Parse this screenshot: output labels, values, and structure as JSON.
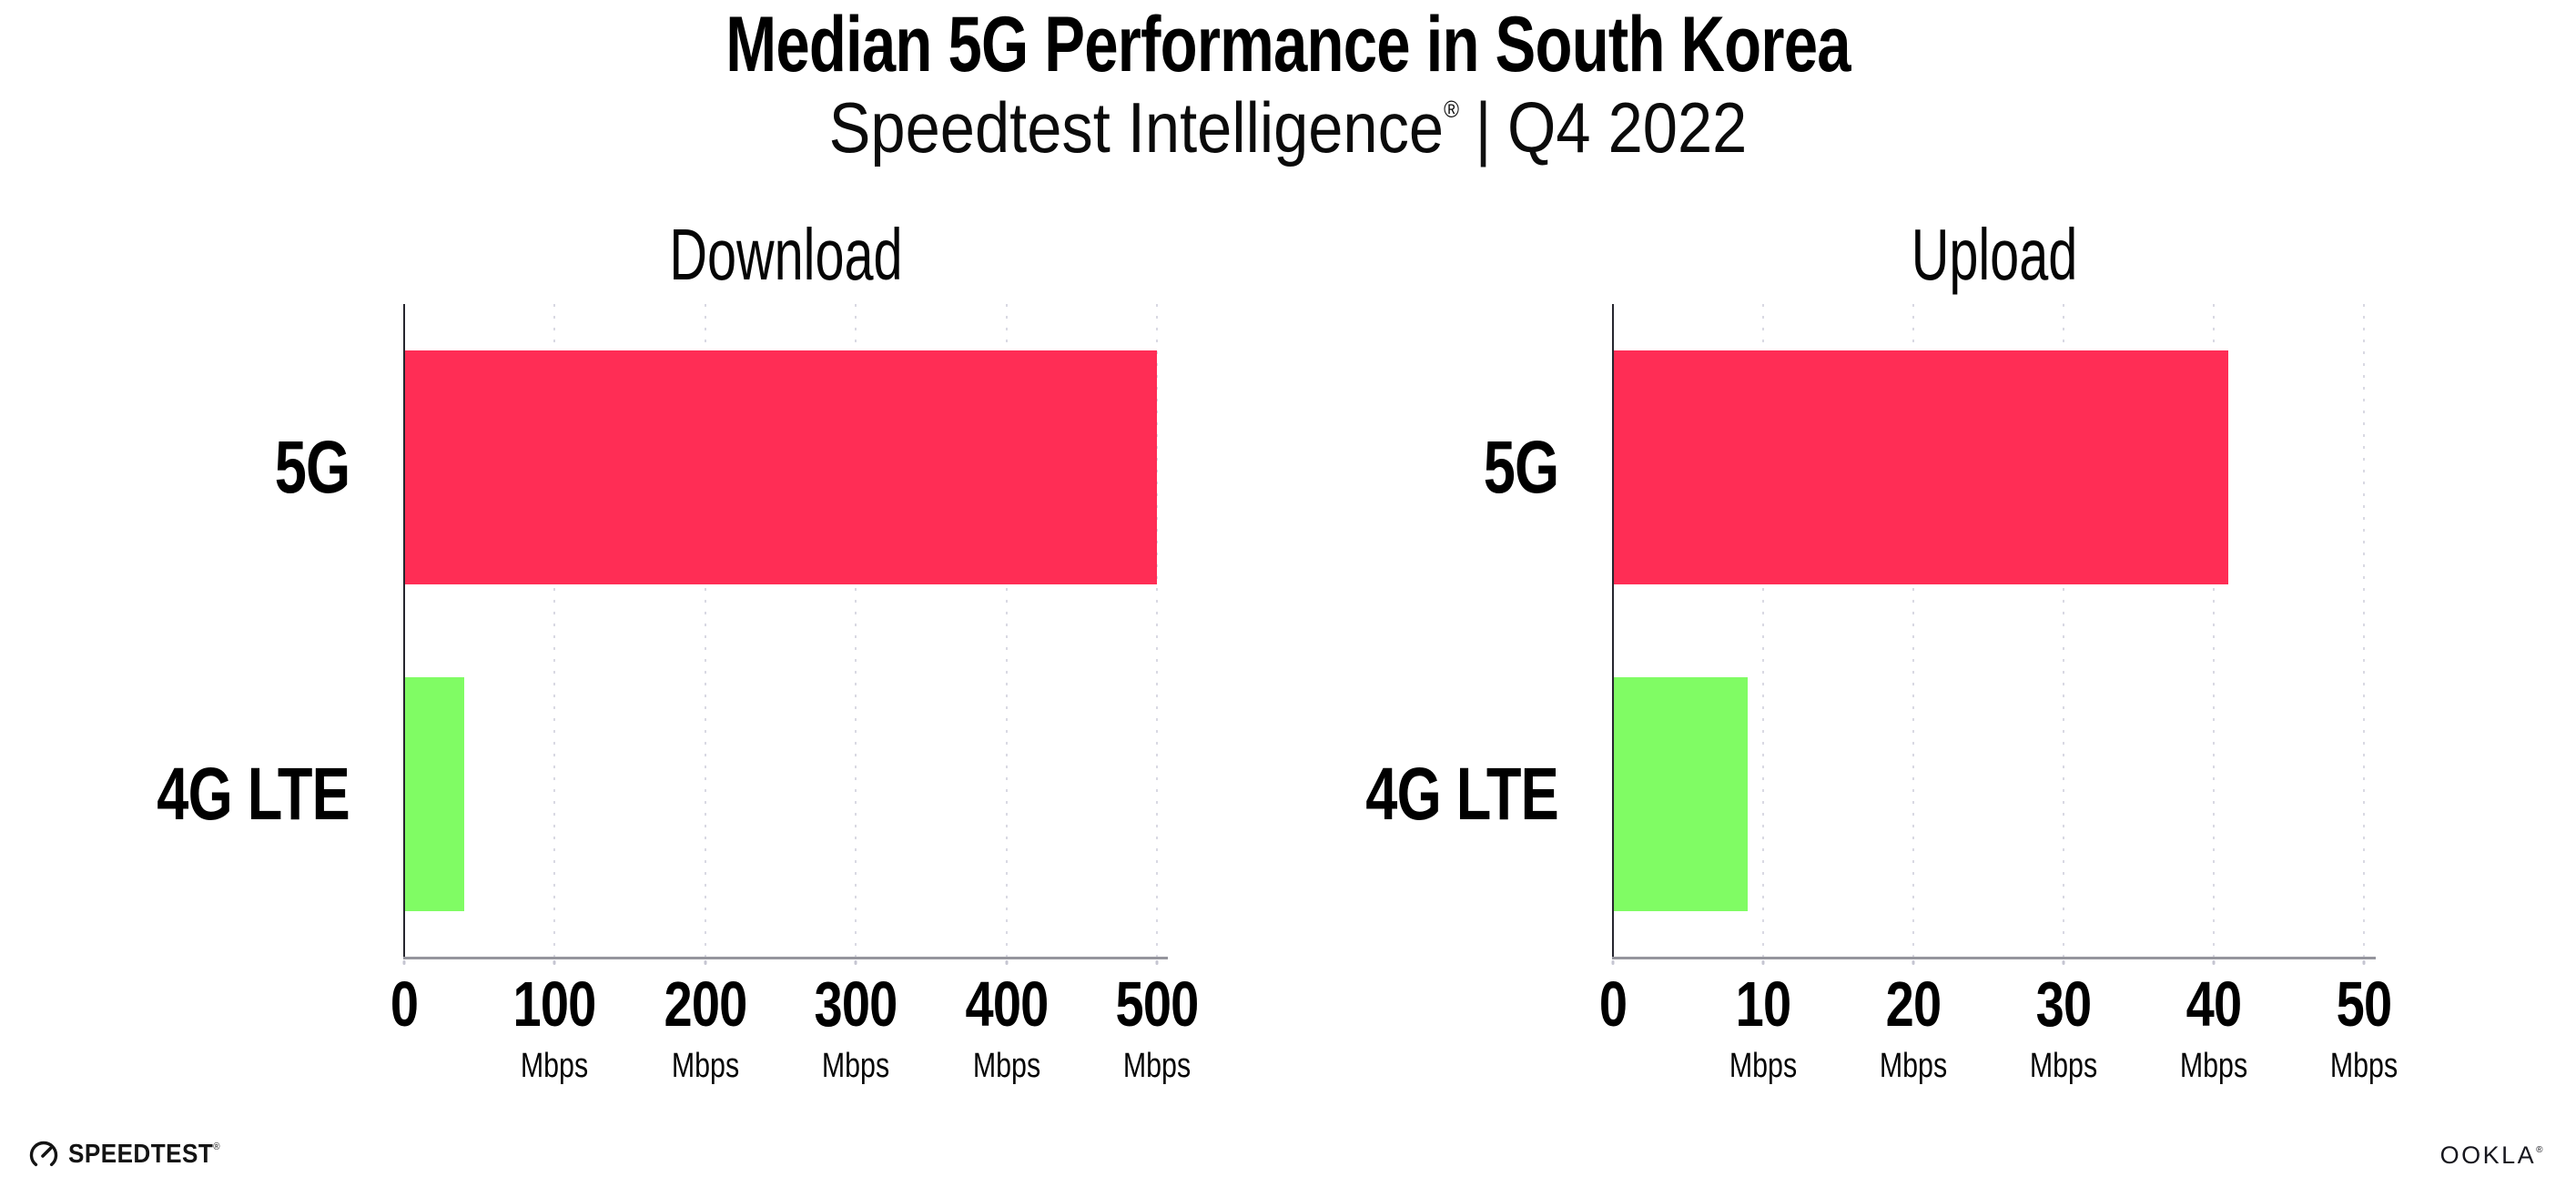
{
  "header": {
    "title": "Median 5G Performance in South Korea",
    "subtitle_brand": "Speedtest Intelligence",
    "subtitle_reg": "®",
    "subtitle_sep": "|",
    "subtitle_period": "Q4 2022"
  },
  "chart_data": [
    {
      "type": "bar",
      "orientation": "horizontal",
      "title": "Download",
      "categories": [
        "5G",
        "4G LTE"
      ],
      "values": [
        500,
        40
      ],
      "unit": "Mbps",
      "xlim": [
        0,
        507
      ],
      "ticks": [
        0,
        100,
        200,
        300,
        400,
        500
      ],
      "tick_unit": "Mbps",
      "bar_colors": [
        "#FF2D55",
        "#80FC64"
      ],
      "gridlines": "dotted-vertical",
      "legend": "none"
    },
    {
      "type": "bar",
      "orientation": "horizontal",
      "title": "Upload",
      "categories": [
        "5G",
        "4G LTE"
      ],
      "values": [
        41,
        9
      ],
      "unit": "Mbps",
      "xlim": [
        0,
        50.8
      ],
      "ticks": [
        0,
        10,
        20,
        30,
        40,
        50
      ],
      "tick_unit": "Mbps",
      "bar_colors": [
        "#FF2D55",
        "#80FC64"
      ],
      "gridlines": "dotted-vertical",
      "legend": "none"
    }
  ],
  "footer": {
    "speedtest_word": "SPEEDTEST",
    "speedtest_reg": "®",
    "ookla_word": "OOKLA",
    "ookla_reg": "®"
  },
  "colors": {
    "bar_5g": "#FF2D55",
    "bar_4g": "#80FC64",
    "gridline": "#D9D9E3",
    "tick": "#C6C6D2",
    "y_axis": "#26262E",
    "x_axis": "#95959D",
    "text": "#000000",
    "background": "#FFFFFF"
  }
}
